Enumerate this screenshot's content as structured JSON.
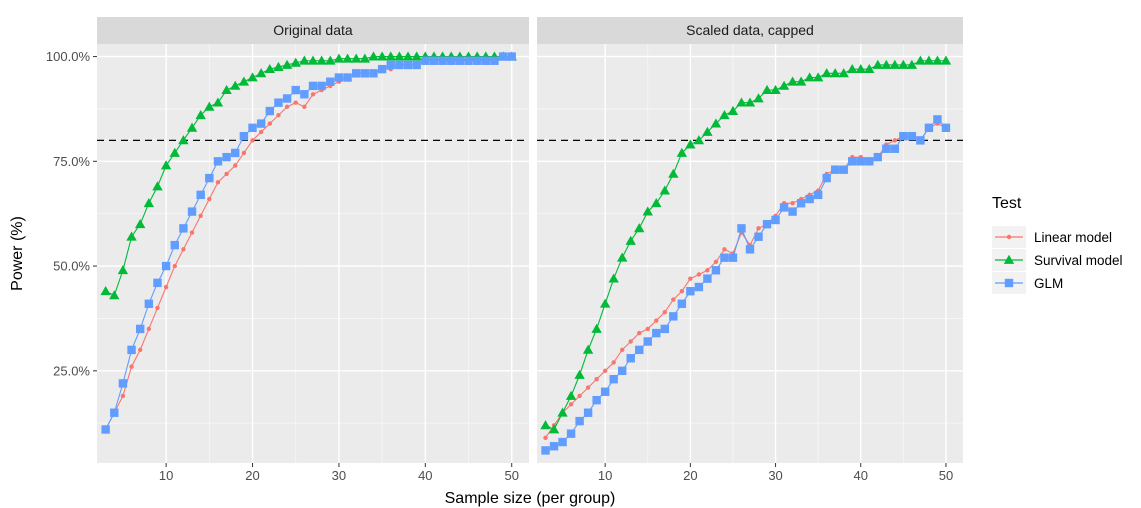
{
  "chart_data": {
    "type": "line",
    "ylabel": "Power (%)",
    "xlabel": "Sample size (per group)",
    "xlim": [
      2,
      52
    ],
    "ylim": [
      0.03,
      1.03
    ],
    "x_ticks": [
      10,
      20,
      30,
      40,
      50
    ],
    "x_tick_labels": [
      "10",
      "20",
      "30",
      "40",
      "50"
    ],
    "y_ticks": [
      0.25,
      0.5,
      0.75,
      1.0
    ],
    "y_tick_labels": [
      "25.0%",
      "50.0%",
      "75.0%",
      "100.0%"
    ],
    "reference_line": 0.8,
    "grid": true,
    "legend": {
      "title": "Test",
      "position": "right",
      "items": [
        {
          "label": "Linear model",
          "color": "#F8766D",
          "marker": "dot"
        },
        {
          "label": "Survival model",
          "color": "#00BA38",
          "marker": "triangle"
        },
        {
          "label": "GLM",
          "color": "#619CFF",
          "marker": "square"
        }
      ]
    },
    "x": [
      3,
      4,
      5,
      6,
      7,
      8,
      9,
      10,
      11,
      12,
      13,
      14,
      15,
      16,
      17,
      18,
      19,
      20,
      21,
      22,
      23,
      24,
      25,
      26,
      27,
      28,
      29,
      30,
      31,
      32,
      33,
      34,
      35,
      36,
      37,
      38,
      39,
      40,
      41,
      42,
      43,
      44,
      45,
      46,
      47,
      48,
      49,
      50
    ],
    "panels": [
      {
        "title": "Original data",
        "series": [
          {
            "name": "Linear model",
            "values": [
              0.11,
              0.15,
              0.19,
              0.26,
              0.3,
              0.35,
              0.4,
              0.45,
              0.5,
              0.54,
              0.58,
              0.62,
              0.66,
              0.7,
              0.72,
              0.74,
              0.77,
              0.8,
              0.82,
              0.84,
              0.86,
              0.88,
              0.89,
              0.88,
              0.91,
              0.92,
              0.93,
              0.94,
              0.95,
              0.96,
              0.96,
              0.96,
              0.97,
              0.97,
              0.98,
              0.98,
              0.98,
              0.99,
              0.99,
              0.99,
              0.99,
              0.99,
              0.99,
              1.0,
              1.0,
              1.0,
              1.0,
              1.0
            ]
          },
          {
            "name": "Survival model",
            "values": [
              0.44,
              0.43,
              0.49,
              0.57,
              0.6,
              0.65,
              0.69,
              0.74,
              0.77,
              0.8,
              0.83,
              0.86,
              0.88,
              0.89,
              0.92,
              0.93,
              0.94,
              0.95,
              0.96,
              0.97,
              0.975,
              0.98,
              0.985,
              0.99,
              0.99,
              0.99,
              0.99,
              0.995,
              0.995,
              0.995,
              0.995,
              1.0,
              1.0,
              1.0,
              1.0,
              1.0,
              1.0,
              1.0,
              1.0,
              1.0,
              1.0,
              1.0,
              1.0,
              1.0,
              1.0,
              1.0,
              1.0,
              1.0
            ]
          },
          {
            "name": "GLM",
            "values": [
              0.11,
              0.15,
              0.22,
              0.3,
              0.35,
              0.41,
              0.46,
              0.5,
              0.55,
              0.59,
              0.63,
              0.67,
              0.71,
              0.75,
              0.76,
              0.77,
              0.81,
              0.83,
              0.84,
              0.87,
              0.89,
              0.9,
              0.92,
              0.91,
              0.93,
              0.93,
              0.94,
              0.95,
              0.95,
              0.96,
              0.96,
              0.96,
              0.97,
              0.98,
              0.98,
              0.98,
              0.98,
              0.99,
              0.99,
              0.99,
              0.99,
              0.99,
              0.99,
              0.99,
              0.99,
              0.99,
              1.0,
              1.0
            ]
          }
        ]
      },
      {
        "title": "Scaled data, capped",
        "series": [
          {
            "name": "Linear model",
            "values": [
              0.09,
              0.12,
              0.15,
              0.17,
              0.19,
              0.21,
              0.23,
              0.25,
              0.27,
              0.3,
              0.32,
              0.34,
              0.35,
              0.37,
              0.39,
              0.42,
              0.44,
              0.47,
              0.48,
              0.49,
              0.51,
              0.54,
              0.53,
              0.58,
              0.55,
              0.59,
              0.6,
              0.62,
              0.65,
              0.65,
              0.66,
              0.67,
              0.68,
              0.72,
              0.73,
              0.73,
              0.76,
              0.76,
              0.75,
              0.76,
              0.79,
              0.8,
              0.81,
              0.81,
              0.8,
              0.83,
              0.84,
              0.83
            ]
          },
          {
            "name": "Survival model",
            "values": [
              0.12,
              0.11,
              0.15,
              0.19,
              0.24,
              0.3,
              0.35,
              0.41,
              0.47,
              0.52,
              0.56,
              0.59,
              0.63,
              0.65,
              0.68,
              0.72,
              0.77,
              0.79,
              0.8,
              0.82,
              0.84,
              0.86,
              0.87,
              0.89,
              0.89,
              0.9,
              0.92,
              0.92,
              0.93,
              0.94,
              0.94,
              0.95,
              0.95,
              0.96,
              0.96,
              0.96,
              0.97,
              0.97,
              0.97,
              0.98,
              0.98,
              0.98,
              0.98,
              0.98,
              0.99,
              0.99,
              0.99,
              0.99
            ]
          },
          {
            "name": "GLM",
            "values": [
              0.06,
              0.07,
              0.08,
              0.1,
              0.13,
              0.15,
              0.18,
              0.2,
              0.23,
              0.25,
              0.28,
              0.3,
              0.32,
              0.34,
              0.35,
              0.38,
              0.41,
              0.44,
              0.45,
              0.47,
              0.49,
              0.52,
              0.52,
              0.59,
              0.54,
              0.57,
              0.6,
              0.61,
              0.64,
              0.63,
              0.65,
              0.66,
              0.67,
              0.71,
              0.73,
              0.73,
              0.75,
              0.75,
              0.75,
              0.76,
              0.78,
              0.78,
              0.81,
              0.81,
              0.8,
              0.83,
              0.85,
              0.83
            ]
          }
        ]
      }
    ]
  }
}
